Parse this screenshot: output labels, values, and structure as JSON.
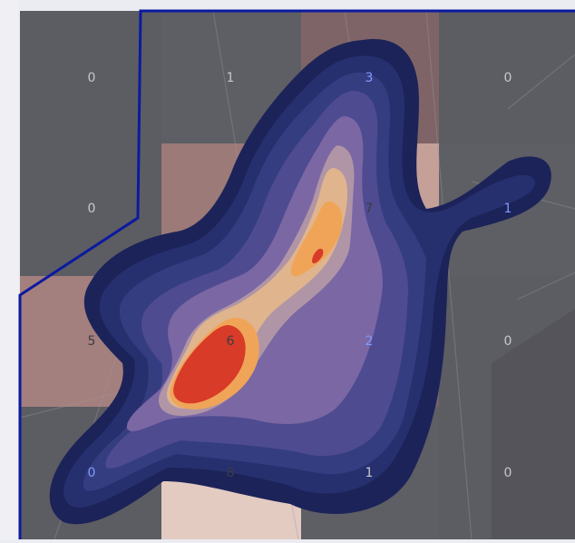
{
  "map": {
    "grid_counts": [
      [
        "0",
        "1",
        "3",
        "0"
      ],
      [
        "0",
        "",
        "7",
        "1"
      ],
      [
        "5",
        "6",
        "2",
        "0"
      ],
      [
        "0",
        "8",
        "1",
        "0"
      ]
    ],
    "count_label_colors": {
      "light_on_dark": "#c8c8cc",
      "blue": "#7f9cff",
      "dark": "#3c3c46"
    },
    "cell_fill_colors": {
      "low": "#5c5c63",
      "mid": "#8c6b6d",
      "high": "#c09a92",
      "peak": "#e6cdc4"
    },
    "density_palette": [
      "#1c2359",
      "#26306e",
      "#353d81",
      "#4e4b91",
      "#7b67a3",
      "#b095a6",
      "#e0b58d",
      "#f0a458",
      "#d83b28"
    ],
    "boundary_color": "#0b1aa0"
  }
}
